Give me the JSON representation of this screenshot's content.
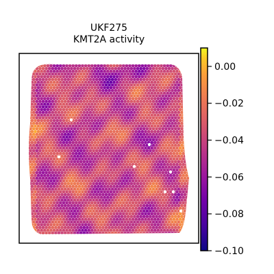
{
  "chart_data": {
    "type": "heatmap",
    "title": [
      "UKF275",
      "KMT2A activity"
    ],
    "colormap": "plasma",
    "colorbar": {
      "vmin": -0.1,
      "vmax": 0.01,
      "ticks": [
        0.0,
        -0.02,
        -0.04,
        -0.06,
        -0.08,
        -0.1
      ],
      "tick_labels": [
        "0.00",
        "−0.02",
        "−0.04",
        "−0.06",
        "−0.08",
        "−0.10"
      ]
    },
    "xlabel": "",
    "ylabel": "",
    "axis_frame": true,
    "axis_ticks": false,
    "description_value_range": [
      -0.1,
      0.01
    ],
    "white_spots_note": "a few isolated spots are blank"
  }
}
